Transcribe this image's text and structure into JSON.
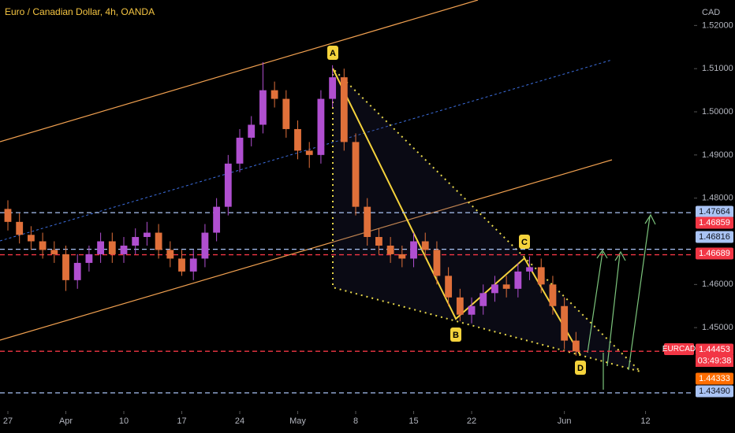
{
  "chart_data": {
    "type": "candlestick",
    "title": "Euro / Canadian Dollar, 4h, OANDA",
    "currency": "CAD",
    "symbol": "EURCAD",
    "countdown": "03:49:38",
    "up_color": "#b04fd0",
    "down_color": "#e0703a",
    "x": [
      0,
      1,
      2,
      3,
      4,
      5,
      6,
      7,
      8,
      9,
      10,
      11,
      12,
      13,
      14,
      15,
      16,
      17,
      18,
      19,
      20,
      21,
      22,
      23,
      24,
      25,
      26,
      27,
      28,
      29,
      30,
      31,
      32,
      33,
      34,
      35,
      36,
      37,
      38,
      39,
      40,
      41,
      42,
      43,
      44,
      45,
      46,
      47,
      48,
      49
    ],
    "ohlc": [
      [
        1.4775,
        1.4795,
        1.4725,
        1.4745
      ],
      [
        1.4745,
        1.4765,
        1.4695,
        1.4715
      ],
      [
        1.4715,
        1.4735,
        1.468,
        1.47
      ],
      [
        1.47,
        1.472,
        1.466,
        1.468
      ],
      [
        1.468,
        1.47,
        1.465,
        1.467
      ],
      [
        1.467,
        1.469,
        1.4585,
        1.461
      ],
      [
        1.461,
        1.467,
        1.459,
        1.465
      ],
      [
        1.465,
        1.469,
        1.463,
        1.467
      ],
      [
        1.467,
        1.472,
        1.465,
        1.47
      ],
      [
        1.47,
        1.472,
        1.465,
        1.467
      ],
      [
        1.467,
        1.471,
        1.465,
        1.469
      ],
      [
        1.469,
        1.473,
        1.467,
        1.471
      ],
      [
        1.471,
        1.4745,
        1.469,
        1.472
      ],
      [
        1.472,
        1.474,
        1.466,
        1.468
      ],
      [
        1.468,
        1.47,
        1.464,
        1.466
      ],
      [
        1.466,
        1.468,
        1.462,
        1.463
      ],
      [
        1.463,
        1.468,
        1.461,
        1.466
      ],
      [
        1.466,
        1.474,
        1.464,
        1.472
      ],
      [
        1.472,
        1.48,
        1.47,
        1.478
      ],
      [
        1.478,
        1.49,
        1.476,
        1.488
      ],
      [
        1.488,
        1.496,
        1.486,
        1.494
      ],
      [
        1.494,
        1.499,
        1.492,
        1.497
      ],
      [
        1.497,
        1.5115,
        1.495,
        1.505
      ],
      [
        1.505,
        1.507,
        1.501,
        1.503
      ],
      [
        1.503,
        1.505,
        1.494,
        1.496
      ],
      [
        1.496,
        1.498,
        1.489,
        1.491
      ],
      [
        1.491,
        1.493,
        1.487,
        1.49
      ],
      [
        1.49,
        1.505,
        1.488,
        1.503
      ],
      [
        1.503,
        1.5108,
        1.501,
        1.508
      ],
      [
        1.508,
        1.51,
        1.491,
        1.493
      ],
      [
        1.493,
        1.495,
        1.476,
        1.478
      ],
      [
        1.478,
        1.48,
        1.469,
        1.471
      ],
      [
        1.471,
        1.473,
        1.467,
        1.469
      ],
      [
        1.469,
        1.471,
        1.465,
        1.467
      ],
      [
        1.467,
        1.469,
        1.464,
        1.466
      ],
      [
        1.466,
        1.472,
        1.464,
        1.47
      ],
      [
        1.47,
        1.472,
        1.466,
        1.468
      ],
      [
        1.468,
        1.47,
        1.46,
        1.462
      ],
      [
        1.462,
        1.464,
        1.455,
        1.457
      ],
      [
        1.457,
        1.459,
        1.4515,
        1.453
      ],
      [
        1.453,
        1.457,
        1.451,
        1.455
      ],
      [
        1.455,
        1.46,
        1.453,
        1.458
      ],
      [
        1.458,
        1.462,
        1.456,
        1.46
      ],
      [
        1.46,
        1.462,
        1.457,
        1.459
      ],
      [
        1.459,
        1.465,
        1.457,
        1.463
      ],
      [
        1.463,
        1.4665,
        1.461,
        1.464
      ],
      [
        1.464,
        1.466,
        1.458,
        1.46
      ],
      [
        1.46,
        1.462,
        1.453,
        1.455
      ],
      [
        1.455,
        1.457,
        1.445,
        1.447
      ],
      [
        1.447,
        1.449,
        1.4435,
        1.4445
      ]
    ],
    "xlim": [
      -0.68,
      59.18
    ],
    "xticks": [
      {
        "value": 0,
        "label": "27"
      },
      {
        "value": 5,
        "label": "Apr"
      },
      {
        "value": 10,
        "label": "10"
      },
      {
        "value": 15,
        "label": "17"
      },
      {
        "value": 20,
        "label": "24"
      },
      {
        "value": 25,
        "label": "May"
      },
      {
        "value": 30,
        "label": "8"
      },
      {
        "value": 35,
        "label": "15"
      },
      {
        "value": 40,
        "label": "22"
      },
      {
        "value": 48,
        "label": "Jun"
      },
      {
        "value": 55,
        "label": "12"
      }
    ],
    "ylim": [
      1.4307,
      1.5259
    ],
    "yticks": [
      {
        "value": 1.52,
        "label": "1.52000"
      },
      {
        "value": 1.51,
        "label": "1.51000"
      },
      {
        "value": 1.5,
        "label": "1.50000"
      },
      {
        "value": 1.49,
        "label": "1.49000"
      },
      {
        "value": 1.48,
        "label": "1.48000"
      },
      {
        "value": 1.46,
        "label": "1.46000"
      },
      {
        "value": 1.45,
        "label": "1.45000"
      }
    ],
    "levels": [
      {
        "value": 1.47664,
        "label": "1.47664",
        "color": "#aac4f5",
        "line": true
      },
      {
        "value": 1.46859,
        "label": "1.46859",
        "color": "#f23645",
        "line": false
      },
      {
        "value": 1.46816,
        "label": "1.46816",
        "color": "#aac4f5",
        "line": true
      },
      {
        "value": 1.46689,
        "label": "1.46689",
        "color": "#f23645",
        "line": true
      },
      {
        "value": 1.44453,
        "label": "1.44453",
        "color": "#f23645",
        "line": true
      },
      {
        "value": 1.44333,
        "label": "1.44333",
        "color": "#ff6d00",
        "line": false
      },
      {
        "value": 1.4349,
        "label": "1.43490",
        "color": "#aac4f5",
        "line": true
      }
    ],
    "pattern_labels": [
      "A",
      "B",
      "C",
      "D"
    ]
  }
}
